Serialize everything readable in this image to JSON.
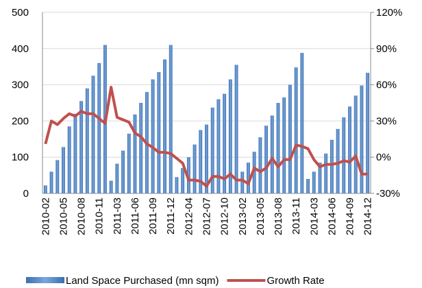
{
  "chart_data": {
    "type": "bar_line",
    "categories": [
      "2010-02",
      null,
      null,
      "2010-05",
      null,
      null,
      "2010-08",
      null,
      null,
      "2010-11",
      null,
      null,
      "2011-03",
      null,
      null,
      "2011-06",
      null,
      null,
      "2011-09",
      null,
      null,
      "2011-12",
      null,
      null,
      "2012-04",
      null,
      null,
      "2012-07",
      null,
      null,
      "2012-10",
      null,
      null,
      "2013-02",
      null,
      null,
      "2013-05",
      null,
      null,
      "2013-08",
      null,
      null,
      "2013-11",
      null,
      null,
      "2014-03",
      null,
      null,
      "2014-06",
      null,
      null,
      "2014-09",
      null,
      null,
      "2014-12"
    ],
    "series": [
      {
        "name": "Land Space Purchased (mn sqm)",
        "color": "#4f81bd",
        "kind": "bar",
        "values": [
          22,
          60,
          92,
          128,
          185,
          220,
          255,
          290,
          325,
          360,
          410,
          35,
          82,
          118,
          165,
          218,
          250,
          280,
          315,
          335,
          370,
          410,
          45,
          70,
          100,
          135,
          175,
          190,
          237,
          260,
          275,
          315,
          355,
          60,
          85,
          115,
          155,
          187,
          215,
          250,
          265,
          300,
          348,
          388,
          40,
          60,
          85,
          110,
          148,
          178,
          210,
          240,
          270,
          298,
          333
        ]
      },
      {
        "name": "Growth Rate",
        "color": "#c0504d",
        "kind": "line",
        "axis": "y2",
        "values": [
          11,
          30,
          27,
          32,
          36,
          34,
          38,
          36,
          36,
          32,
          28,
          58,
          33,
          31,
          29,
          20,
          17,
          11,
          8,
          4,
          4,
          3,
          -1,
          -5,
          -19,
          -19,
          -20,
          -24,
          -16,
          -16,
          -18,
          -14,
          -19,
          -19,
          -22,
          -9,
          -12,
          -9,
          -1,
          -8,
          -2,
          -2,
          10,
          9,
          7,
          -2,
          -8,
          -6,
          -6,
          -5,
          -3,
          -4,
          1,
          -14,
          -14
        ]
      }
    ],
    "ylim": [
      0,
      500
    ],
    "yticks": [
      0,
      100,
      200,
      300,
      400,
      500
    ],
    "y2lim": [
      -30,
      120
    ],
    "y2ticks": [
      {
        "value": -30,
        "label": "-30%"
      },
      {
        "value": 0,
        "label": "0%"
      },
      {
        "value": 30,
        "label": "30%"
      },
      {
        "value": 60,
        "label": "60%"
      },
      {
        "value": 90,
        "label": "90%"
      },
      {
        "value": 120,
        "label": "120%"
      }
    ],
    "grid": true,
    "legend": "bottom"
  }
}
